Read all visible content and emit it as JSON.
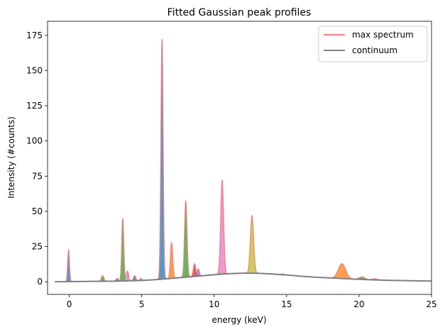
{
  "chart_data": {
    "type": "area",
    "title": "Fitted Gaussian peak profiles",
    "xlabel": "energy (keV)",
    "ylabel": "Intensity (#counts)",
    "xlim": [
      -1.5,
      25
    ],
    "ylim": [
      -9,
      185
    ],
    "x_ticks": [
      0,
      5,
      10,
      15,
      20,
      25
    ],
    "y_ticks": [
      0,
      25,
      50,
      75,
      100,
      125,
      150,
      175
    ],
    "grid": false,
    "legend_position": "top-right",
    "legend": [
      {
        "name": "max spectrum",
        "color": "#f08080",
        "style": "line"
      },
      {
        "name": "continuum",
        "color": "#808080",
        "style": "line"
      }
    ],
    "continuum": {
      "name": "continuum",
      "color": "#808080",
      "x": [
        -1,
        0,
        1,
        2,
        3,
        4,
        5,
        6,
        7,
        8,
        9,
        10,
        11,
        12,
        13,
        14,
        15,
        16,
        17,
        18,
        19,
        20,
        21,
        22,
        23,
        24,
        25
      ],
      "y": [
        0,
        0.1,
        0.2,
        0.3,
        0.4,
        0.6,
        0.9,
        1.5,
        2.3,
        3.2,
        4.1,
        5.0,
        5.7,
        6.1,
        6.0,
        5.5,
        4.8,
        3.9,
        3.2,
        2.7,
        2.2,
        1.7,
        1.3,
        1.0,
        0.8,
        0.6,
        0.5
      ]
    },
    "peaks": [
      {
        "center": -0.05,
        "height": 22.5,
        "sigma": 0.06,
        "color": "#1f77b4"
      },
      {
        "center": 2.3,
        "height": 4.0,
        "sigma": 0.08,
        "color": "#2ca02c"
      },
      {
        "center": 3.31,
        "height": 2.0,
        "sigma": 0.07,
        "color": "#d62728"
      },
      {
        "center": 3.69,
        "height": 44.5,
        "sigma": 0.07,
        "color": "#2ca02c"
      },
      {
        "center": 4.01,
        "height": 7.0,
        "sigma": 0.08,
        "color": "#e377c2"
      },
      {
        "center": 4.51,
        "height": 3.5,
        "sigma": 0.08,
        "color": "#1f77b4"
      },
      {
        "center": 4.95,
        "height": 1.5,
        "sigma": 0.07,
        "color": "#ff7f0e"
      },
      {
        "center": 6.4,
        "height": 170.5,
        "sigma": 0.075,
        "color": "#1f77b4"
      },
      {
        "center": 7.06,
        "height": 25.5,
        "sigma": 0.08,
        "color": "#ff7f0e"
      },
      {
        "center": 8.04,
        "height": 54.0,
        "sigma": 0.085,
        "color": "#2ca02c"
      },
      {
        "center": 8.64,
        "height": 9.0,
        "sigma": 0.08,
        "color": "#d62728"
      },
      {
        "center": 8.9,
        "height": 5.0,
        "sigma": 0.08,
        "color": "#9467bd"
      },
      {
        "center": 10.55,
        "height": 66.5,
        "sigma": 0.1,
        "color": "#e377c2"
      },
      {
        "center": 12.61,
        "height": 41.0,
        "sigma": 0.11,
        "color": "#bcbd22"
      },
      {
        "center": 14.76,
        "height": 0.5,
        "sigma": 0.12,
        "color": "#17becf"
      },
      {
        "center": 18.82,
        "height": 10.5,
        "sigma": 0.25,
        "color": "#ff7f0e"
      },
      {
        "center": 20.2,
        "height": 1.8,
        "sigma": 0.2,
        "color": "#2ca02c"
      },
      {
        "center": 21.1,
        "height": 0.8,
        "sigma": 0.2,
        "color": "#d62728"
      }
    ]
  }
}
